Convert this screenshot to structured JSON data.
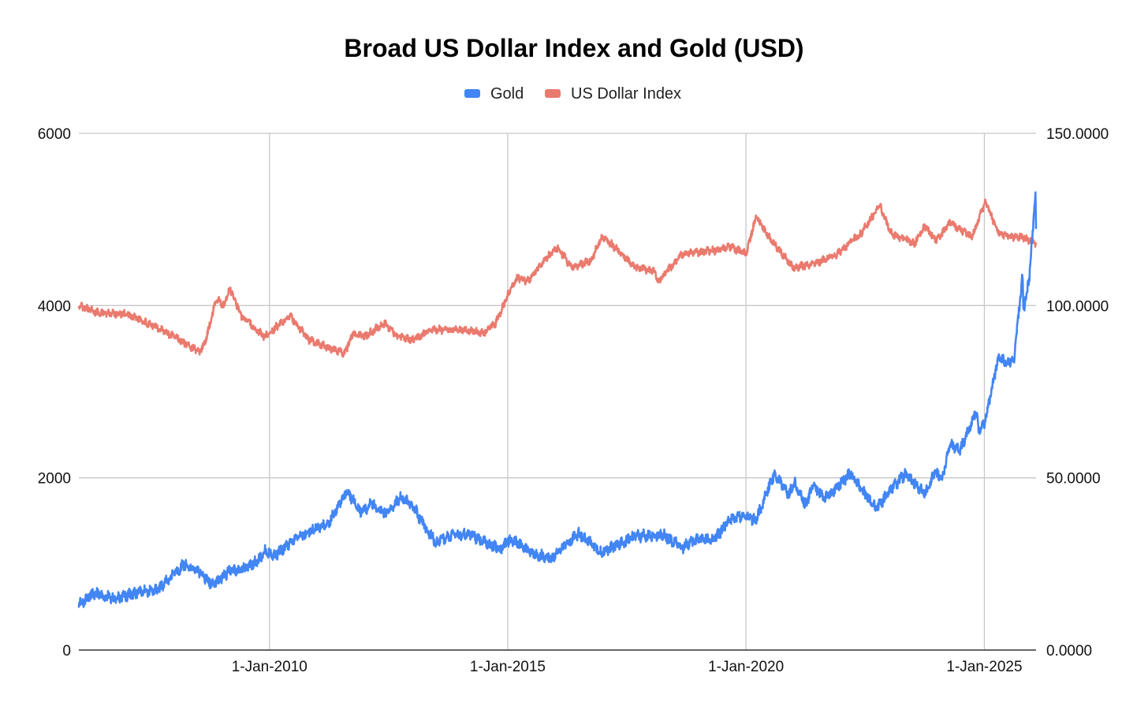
{
  "chart_data": {
    "type": "line",
    "title": "Broad US Dollar Index and Gold (USD)",
    "x_type": "date",
    "x_range": [
      "2006-01-01",
      "2026-02-01"
    ],
    "x_ticks": [
      {
        "date": "2010-01-01",
        "label": "1-Jan-2010"
      },
      {
        "date": "2015-01-01",
        "label": "1-Jan-2015"
      },
      {
        "date": "2020-01-01",
        "label": "1-Jan-2020"
      },
      {
        "date": "2025-01-01",
        "label": "1-Jan-2025"
      }
    ],
    "y_left": {
      "range": [
        0,
        6000
      ],
      "ticks": [
        0,
        2000,
        4000,
        6000
      ],
      "tick_labels": [
        "0",
        "2000",
        "4000",
        "6000"
      ]
    },
    "y_right": {
      "range": [
        0,
        150
      ],
      "ticks": [
        0,
        50,
        100,
        150
      ],
      "tick_labels": [
        "0.0000",
        "50.0000",
        "100.0000",
        "150.0000"
      ]
    },
    "grid": true,
    "legend_position": "top-center",
    "series": [
      {
        "name": "Gold",
        "axis": "left",
        "color": "#4285f4",
        "points": [
          [
            "2006-01-01",
            530
          ],
          [
            "2006-05-01",
            660
          ],
          [
            "2006-10-01",
            590
          ],
          [
            "2007-03-01",
            660
          ],
          [
            "2007-09-01",
            700
          ],
          [
            "2008-01-01",
            880
          ],
          [
            "2008-03-15",
            990
          ],
          [
            "2008-07-01",
            930
          ],
          [
            "2008-10-25",
            750
          ],
          [
            "2009-03-01",
            920
          ],
          [
            "2009-06-01",
            930
          ],
          [
            "2009-10-01",
            1030
          ],
          [
            "2009-12-01",
            1150
          ],
          [
            "2010-02-01",
            1090
          ],
          [
            "2010-06-01",
            1240
          ],
          [
            "2010-12-01",
            1400
          ],
          [
            "2011-04-01",
            1480
          ],
          [
            "2011-08-20",
            1850
          ],
          [
            "2011-12-01",
            1600
          ],
          [
            "2012-03-01",
            1700
          ],
          [
            "2012-06-01",
            1580
          ],
          [
            "2012-10-01",
            1780
          ],
          [
            "2013-01-01",
            1680
          ],
          [
            "2013-04-20",
            1400
          ],
          [
            "2013-07-01",
            1250
          ],
          [
            "2013-10-01",
            1320
          ],
          [
            "2014-03-01",
            1360
          ],
          [
            "2014-06-01",
            1280
          ],
          [
            "2014-11-01",
            1170
          ],
          [
            "2015-01-20",
            1290
          ],
          [
            "2015-07-01",
            1130
          ],
          [
            "2015-12-01",
            1060
          ],
          [
            "2016-07-01",
            1360
          ],
          [
            "2016-12-15",
            1130
          ],
          [
            "2017-09-01",
            1320
          ],
          [
            "2018-04-01",
            1340
          ],
          [
            "2018-09-01",
            1190
          ],
          [
            "2019-01-01",
            1290
          ],
          [
            "2019-05-01",
            1280
          ],
          [
            "2019-09-01",
            1520
          ],
          [
            "2020-01-01",
            1560
          ],
          [
            "2020-03-15",
            1500
          ],
          [
            "2020-08-07",
            2050
          ],
          [
            "2020-11-25",
            1800
          ],
          [
            "2021-01-06",
            1950
          ],
          [
            "2021-03-31",
            1690
          ],
          [
            "2021-06-01",
            1900
          ],
          [
            "2021-09-01",
            1760
          ],
          [
            "2022-03-08",
            2050
          ],
          [
            "2022-09-28",
            1630
          ],
          [
            "2023-01-01",
            1840
          ],
          [
            "2023-05-01",
            2040
          ],
          [
            "2023-10-05",
            1820
          ],
          [
            "2023-12-20",
            2060
          ],
          [
            "2024-02-15",
            2000
          ],
          [
            "2024-04-15",
            2380
          ],
          [
            "2024-07-01",
            2330
          ],
          [
            "2024-10-30",
            2780
          ],
          [
            "2024-11-15",
            2570
          ],
          [
            "2025-01-01",
            2620
          ],
          [
            "2025-04-20",
            3420
          ],
          [
            "2025-06-01",
            3350
          ],
          [
            "2025-08-15",
            3360
          ],
          [
            "2025-10-20",
            4350
          ],
          [
            "2025-10-28",
            3950
          ],
          [
            "2025-12-10",
            4300
          ],
          [
            "2026-01-28",
            5300
          ],
          [
            "2026-02-01",
            4900
          ]
        ]
      },
      {
        "name": "US Dollar Index",
        "axis": "right",
        "color": "#ea7a6e",
        "points": [
          [
            "2006-01-01",
            100
          ],
          [
            "2006-06-01",
            97.8
          ],
          [
            "2007-01-01",
            97.5
          ],
          [
            "2007-06-01",
            95
          ],
          [
            "2008-01-01",
            91
          ],
          [
            "2008-07-15",
            86.5
          ],
          [
            "2008-09-01",
            90
          ],
          [
            "2008-11-20",
            102
          ],
          [
            "2009-01-15",
            100
          ],
          [
            "2009-03-05",
            105
          ],
          [
            "2009-06-01",
            97
          ],
          [
            "2009-11-20",
            91
          ],
          [
            "2010-03-01",
            94
          ],
          [
            "2010-06-07",
            97
          ],
          [
            "2010-11-01",
            90
          ],
          [
            "2011-07-29",
            86
          ],
          [
            "2011-10-04",
            92
          ],
          [
            "2012-01-01",
            91
          ],
          [
            "2012-06-01",
            95
          ],
          [
            "2012-09-01",
            91
          ],
          [
            "2013-01-01",
            90
          ],
          [
            "2013-06-01",
            93
          ],
          [
            "2014-01-01",
            93
          ],
          [
            "2014-06-30",
            92
          ],
          [
            "2014-10-01",
            95
          ],
          [
            "2015-01-15",
            104
          ],
          [
            "2015-03-13",
            108
          ],
          [
            "2015-06-01",
            107
          ],
          [
            "2015-11-01",
            114
          ],
          [
            "2016-01-20",
            117
          ],
          [
            "2016-05-01",
            111
          ],
          [
            "2016-10-01",
            113
          ],
          [
            "2016-12-20",
            120
          ],
          [
            "2017-03-01",
            118
          ],
          [
            "2017-09-08",
            111
          ],
          [
            "2018-02-01",
            110
          ],
          [
            "2018-03-01",
            107
          ],
          [
            "2018-09-01",
            115
          ],
          [
            "2019-05-01",
            116
          ],
          [
            "2019-09-01",
            117
          ],
          [
            "2020-01-01",
            115
          ],
          [
            "2020-03-20",
            126
          ],
          [
            "2020-06-01",
            121
          ],
          [
            "2020-12-31",
            111
          ],
          [
            "2021-06-01",
            112
          ],
          [
            "2021-12-01",
            115
          ],
          [
            "2022-06-01",
            121
          ],
          [
            "2022-10-21",
            129
          ],
          [
            "2023-01-15",
            121
          ],
          [
            "2023-07-14",
            118
          ],
          [
            "2023-10-03",
            123
          ],
          [
            "2023-12-28",
            119
          ],
          [
            "2024-04-16",
            124
          ],
          [
            "2024-09-27",
            120
          ],
          [
            "2024-12-31",
            129
          ],
          [
            "2025-01-13",
            130
          ],
          [
            "2025-04-21",
            121
          ],
          [
            "2025-07-01",
            120
          ],
          [
            "2025-10-01",
            120
          ],
          [
            "2026-02-01",
            118
          ]
        ]
      }
    ]
  }
}
